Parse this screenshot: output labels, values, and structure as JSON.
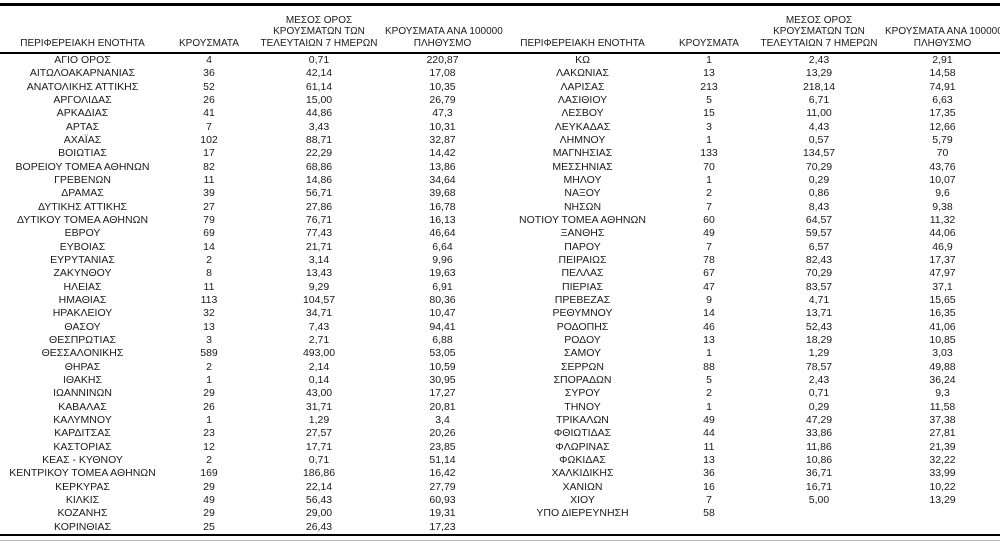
{
  "page": {
    "background": "#ffffff",
    "text_color": "#1a1a1a",
    "rule_color": "#000000",
    "hairline_color": "#b7b7b7"
  },
  "table": {
    "headers": [
      [
        "ΠΕΡΙΦΕΡΕΙΑΚΗ ΕΝΟΤΗΤΑ"
      ],
      [
        "ΚΡΟΥΣΜΑΤΑ"
      ],
      [
        "ΜΕΣΟΣ ΟΡΟΣ",
        "ΚΡΟΥΣΜΑΤΩΝ ΤΩΝ",
        "ΤΕΛΕΥΤΑΙΩΝ 7 ΗΜΕΡΩΝ"
      ],
      [
        "ΚΡΟΥΣΜΑΤΑ ΑΝΑ 100000",
        "ΠΛΗΘΥΣΜΟ"
      ]
    ],
    "left_rows": [
      [
        "ΑΓΙΟ ΟΡΟΣ",
        "4",
        "0,71",
        "220,87"
      ],
      [
        "ΑΙΤΩΛΟΑΚΑΡΝΑΝΙΑΣ",
        "36",
        "42,14",
        "17,08"
      ],
      [
        "ΑΝΑΤΟΛΙΚΗΣ ΑΤΤΙΚΗΣ",
        "52",
        "61,14",
        "10,35"
      ],
      [
        "ΑΡΓΟΛΙΔΑΣ",
        "26",
        "15,00",
        "26,79"
      ],
      [
        "ΑΡΚΑΔΙΑΣ",
        "41",
        "44,86",
        "47,3"
      ],
      [
        "ΑΡΤΑΣ",
        "7",
        "3,43",
        "10,31"
      ],
      [
        "ΑΧΑΪΑΣ",
        "102",
        "88,71",
        "32,87"
      ],
      [
        "ΒΟΙΩΤΙΑΣ",
        "17",
        "22,29",
        "14,42"
      ],
      [
        "ΒΟΡΕΙΟΥ ΤΟΜΕΑ ΑΘΗΝΩΝ",
        "82",
        "68,86",
        "13,86"
      ],
      [
        "ΓΡΕΒΕΝΩΝ",
        "11",
        "14,86",
        "34,64"
      ],
      [
        "ΔΡΑΜΑΣ",
        "39",
        "56,71",
        "39,68"
      ],
      [
        "ΔΥΤΙΚΗΣ ΑΤΤΙΚΗΣ",
        "27",
        "27,86",
        "16,78"
      ],
      [
        "ΔΥΤΙΚΟΥ ΤΟΜΕΑ ΑΘΗΝΩΝ",
        "79",
        "76,71",
        "16,13"
      ],
      [
        "ΕΒΡΟΥ",
        "69",
        "77,43",
        "46,64"
      ],
      [
        "ΕΥΒΟΙΑΣ",
        "14",
        "21,71",
        "6,64"
      ],
      [
        "ΕΥΡΥΤΑΝΙΑΣ",
        "2",
        "3,14",
        "9,96"
      ],
      [
        "ΖΑΚΥΝΘΟΥ",
        "8",
        "13,43",
        "19,63"
      ],
      [
        "ΗΛΕΙΑΣ",
        "11",
        "9,29",
        "6,91"
      ],
      [
        "ΗΜΑΘΙΑΣ",
        "113",
        "104,57",
        "80,36"
      ],
      [
        "ΗΡΑΚΛΕΙΟΥ",
        "32",
        "34,71",
        "10,47"
      ],
      [
        "ΘΑΣΟΥ",
        "13",
        "7,43",
        "94,41"
      ],
      [
        "ΘΕΣΠΡΩΤΙΑΣ",
        "3",
        "2,71",
        "6,88"
      ],
      [
        "ΘΕΣΣΑΛΟΝΙΚΗΣ",
        "589",
        "493,00",
        "53,05"
      ],
      [
        "ΘΗΡΑΣ",
        "2",
        "2,14",
        "10,59"
      ],
      [
        "ΙΘΑΚΗΣ",
        "1",
        "0,14",
        "30,95"
      ],
      [
        "ΙΩΑΝΝΙΝΩΝ",
        "29",
        "43,00",
        "17,27"
      ],
      [
        "ΚΑΒΑΛΑΣ",
        "26",
        "31,71",
        "20,81"
      ],
      [
        "ΚΑΛΥΜΝΟΥ",
        "1",
        "1,29",
        "3,4"
      ],
      [
        "ΚΑΡΔΙΤΣΑΣ",
        "23",
        "27,57",
        "20,26"
      ],
      [
        "ΚΑΣΤΟΡΙΑΣ",
        "12",
        "17,71",
        "23,85"
      ],
      [
        "ΚΕΑΣ - ΚΥΘΝΟΥ",
        "2",
        "0,71",
        "51,14"
      ],
      [
        "ΚΕΝΤΡΙΚΟΥ ΤΟΜΕΑ ΑΘΗΝΩΝ",
        "169",
        "186,86",
        "16,42"
      ],
      [
        "ΚΕΡΚΥΡΑΣ",
        "29",
        "22,14",
        "27,79"
      ],
      [
        "ΚΙΛΚΙΣ",
        "49",
        "56,43",
        "60,93"
      ],
      [
        "ΚΟΖΑΝΗΣ",
        "29",
        "29,00",
        "19,31"
      ],
      [
        "ΚΟΡΙΝΘΙΑΣ",
        "25",
        "26,43",
        "17,23"
      ]
    ],
    "right_rows": [
      [
        "ΚΩ",
        "1",
        "2,43",
        "2,91"
      ],
      [
        "ΛΑΚΩΝΙΑΣ",
        "13",
        "13,29",
        "14,58"
      ],
      [
        "ΛΑΡΙΣΑΣ",
        "213",
        "218,14",
        "74,91"
      ],
      [
        "ΛΑΣΙΘΙΟΥ",
        "5",
        "6,71",
        "6,63"
      ],
      [
        "ΛΕΣΒΟΥ",
        "15",
        "11,00",
        "17,35"
      ],
      [
        "ΛΕΥΚΑΔΑΣ",
        "3",
        "4,43",
        "12,66"
      ],
      [
        "ΛΗΜΝΟΥ",
        "1",
        "0,57",
        "5,79"
      ],
      [
        "ΜΑΓΝΗΣΙΑΣ",
        "133",
        "134,57",
        "70"
      ],
      [
        "ΜΕΣΣΗΝΙΑΣ",
        "70",
        "70,29",
        "43,76"
      ],
      [
        "ΜΗΛΟΥ",
        "1",
        "0,29",
        "10,07"
      ],
      [
        "ΝΑΞΟΥ",
        "2",
        "0,86",
        "9,6"
      ],
      [
        "ΝΗΣΩΝ",
        "7",
        "8,43",
        "9,38"
      ],
      [
        "ΝΟΤΙΟΥ ΤΟΜΕΑ ΑΘΗΝΩΝ",
        "60",
        "64,57",
        "11,32"
      ],
      [
        "ΞΑΝΘΗΣ",
        "49",
        "59,57",
        "44,06"
      ],
      [
        "ΠΑΡΟΥ",
        "7",
        "6,57",
        "46,9"
      ],
      [
        "ΠΕΙΡΑΙΩΣ",
        "78",
        "82,43",
        "17,37"
      ],
      [
        "ΠΕΛΛΑΣ",
        "67",
        "70,29",
        "47,97"
      ],
      [
        "ΠΙΕΡΙΑΣ",
        "47",
        "83,57",
        "37,1"
      ],
      [
        "ΠΡΕΒΕΖΑΣ",
        "9",
        "4,71",
        "15,65"
      ],
      [
        "ΡΕΘΥΜΝΟΥ",
        "14",
        "13,71",
        "16,35"
      ],
      [
        "ΡΟΔΟΠΗΣ",
        "46",
        "52,43",
        "41,06"
      ],
      [
        "ΡΟΔΟΥ",
        "13",
        "18,29",
        "10,85"
      ],
      [
        "ΣΑΜΟΥ",
        "1",
        "1,29",
        "3,03"
      ],
      [
        "ΣΕΡΡΩΝ",
        "88",
        "78,57",
        "49,88"
      ],
      [
        "ΣΠΟΡΑΔΩΝ",
        "5",
        "2,43",
        "36,24"
      ],
      [
        "ΣΥΡΟΥ",
        "2",
        "0,71",
        "9,3"
      ],
      [
        "ΤΗΝΟΥ",
        "1",
        "0,29",
        "11,58"
      ],
      [
        "ΤΡΙΚΑΛΩΝ",
        "49",
        "47,29",
        "37,38"
      ],
      [
        "ΦΘΙΩΤΙΔΑΣ",
        "44",
        "33,86",
        "27,81"
      ],
      [
        "ΦΛΩΡΙΝΑΣ",
        "11",
        "11,86",
        "21,39"
      ],
      [
        "ΦΩΚΙΔΑΣ",
        "13",
        "10,86",
        "32,22"
      ],
      [
        "ΧΑΛΚΙΔΙΚΗΣ",
        "36",
        "36,71",
        "33,99"
      ],
      [
        "ΧΑΝΙΩΝ",
        "16",
        "16,71",
        "10,22"
      ],
      [
        "ΧΙΟΥ",
        "7",
        "5,00",
        "13,29"
      ],
      [
        "ΥΠΟ ΔΙΕΡΕΥΝΗΣΗ",
        "58",
        "",
        ""
      ],
      [
        "",
        "",
        "",
        ""
      ]
    ]
  }
}
